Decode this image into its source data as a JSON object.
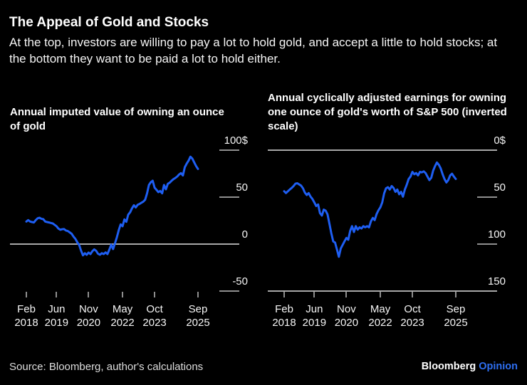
{
  "header": {
    "title": "The Appeal of Gold and Stocks",
    "subtitle": "At the top, investors are willing to pay a lot to hold gold, and accept a little to hold stocks; at the bottom they want to be paid a lot to hold either."
  },
  "footer": {
    "source": "Source: Bloomberg, author's calculations",
    "brand": "Bloomberg",
    "brand_suffix": "Opinion"
  },
  "colors": {
    "background": "#000000",
    "line_blue": "#1e5ef2",
    "opinion_blue": "#2e6ff2",
    "dash_gray": "#8f8f8f",
    "axis_gray": "#a8a8a8",
    "text_white": "#ffffff",
    "label_gray": "#f5f5f5"
  },
  "chart_data": [
    {
      "type": "line",
      "title": "Annual imputed value of owning an ounce of gold",
      "unit": "$",
      "inverted_scale": false,
      "ylim": [
        100,
        -50
      ],
      "zero_line_value": 0,
      "baseline_bottom": false,
      "y_ticks": [
        {
          "label": "100$",
          "value": 100
        },
        {
          "label": "50",
          "value": 50
        },
        {
          "label": "0",
          "value": 0
        },
        {
          "label": "-50",
          "value": -50
        }
      ],
      "x_tick_labels": [
        [
          "Feb",
          "2018"
        ],
        [
          "Jun",
          "2019"
        ],
        [
          "Nov",
          "2020"
        ],
        [
          "May",
          "2022"
        ],
        [
          "Oct",
          "2023"
        ],
        [
          "Sep",
          "2025"
        ]
      ],
      "x_tick_indices": [
        0,
        16,
        33,
        51,
        68,
        91
      ],
      "values": [
        24,
        25.5,
        24,
        23.5,
        23,
        25.5,
        27.5,
        28,
        27,
        26.5,
        24,
        23.5,
        23,
        22.5,
        22,
        20.5,
        19,
        16.5,
        15.2,
        15.8,
        16,
        14.5,
        13.9,
        12.5,
        11,
        8,
        5.5,
        2,
        -1,
        -7,
        -12,
        -9.7,
        -11.4,
        -9,
        -10.6,
        -7.6,
        -5.6,
        -7.1,
        -10.2,
        -11.4,
        -9.7,
        -10.6,
        -8.9,
        -10.6,
        -6,
        -0.5,
        -5.3,
        1,
        7.3,
        15,
        21,
        19,
        26.3,
        23.7,
        31.3,
        33.9,
        38,
        41.4,
        39,
        41.9,
        42.7,
        44,
        45.2,
        47.2,
        54,
        62.9,
        65.9,
        67.4,
        60,
        57.8,
        55.3,
        56.6,
        54,
        62.9,
        58.3,
        64.2,
        65.4,
        67.4,
        69.2,
        70.4,
        72,
        74.2,
        75.5,
        73,
        81.8,
        85.6,
        88.9,
        93,
        91,
        87,
        83,
        80
      ]
    },
    {
      "type": "line",
      "title": "Annual cyclically adjusted earnings for owning one ounce of gold's worth of S&P 500 (inverted scale)",
      "unit": "$",
      "inverted_scale": true,
      "ylim": [
        0,
        150
      ],
      "zero_line_value": 0,
      "baseline_bottom": true,
      "y_ticks": [
        {
          "label": "0$",
          "value": 0
        },
        {
          "label": "50",
          "value": 50
        },
        {
          "label": "100",
          "value": 100
        },
        {
          "label": "150",
          "value": 150
        }
      ],
      "x_tick_labels": [
        [
          "Feb",
          "2018"
        ],
        [
          "Jun",
          "2019"
        ],
        [
          "Nov",
          "2020"
        ],
        [
          "May",
          "2022"
        ],
        [
          "Oct",
          "2023"
        ],
        [
          "Sep",
          "2025"
        ]
      ],
      "x_tick_indices": [
        0,
        16,
        33,
        51,
        68,
        91
      ],
      "values": [
        43.7,
        45.7,
        43.7,
        41.9,
        40.2,
        38.2,
        35.7,
        35.2,
        36.5,
        37.7,
        40.7,
        45.2,
        47.7,
        45.7,
        49.5,
        52,
        55.7,
        59.5,
        57.8,
        67,
        69.6,
        63.3,
        64.5,
        68.3,
        78.3,
        88.4,
        97.1,
        98.4,
        106,
        113.5,
        104.7,
        100.9,
        97.1,
        93.4,
        95.4,
        85.9,
        80.9,
        87.1,
        80.9,
        84.6,
        82.1,
        83.4,
        80.9,
        82.1,
        80.9,
        82.1,
        75.8,
        72.1,
        74.5,
        68,
        64,
        60.8,
        55.7,
        46,
        40.7,
        39.4,
        41.9,
        38.2,
        40.2,
        44.4,
        41.9,
        47,
        44.4,
        49.5,
        41.9,
        36.9,
        30.7,
        28.2,
        23.1,
        25.6,
        24.4,
        26.9,
        23.1,
        23.6,
        22.6,
        24.4,
        28.2,
        31.9,
        29.4,
        21.8,
        16.9,
        13.1,
        15.6,
        19.4,
        25.6,
        30.7,
        34.4,
        31.9,
        26.9,
        25.1,
        28.2,
        30.7
      ]
    }
  ]
}
